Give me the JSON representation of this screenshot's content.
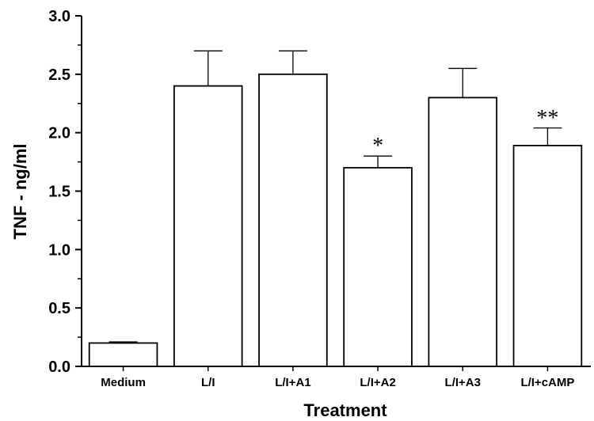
{
  "chart_data": {
    "type": "bar",
    "title": "",
    "xlabel": "Treatment",
    "ylabel": "TNF - ng/ml",
    "ylim": [
      0,
      3.0
    ],
    "yticks": [
      "0.0",
      "0.5",
      "1.0",
      "1.5",
      "2.0",
      "2.5",
      "3.0"
    ],
    "categories": [
      "Medium",
      "L/I",
      "L/I+A1",
      "L/I+A2",
      "L/I+A3",
      "L/I+cAMP"
    ],
    "values": [
      0.2,
      2.4,
      2.5,
      1.7,
      2.3,
      1.89
    ],
    "errors": [
      0.01,
      0.3,
      0.2,
      0.1,
      0.25,
      0.15
    ],
    "annotations": [
      "",
      "",
      "",
      "*",
      "",
      "**"
    ],
    "grid": false,
    "bar_color": "#ffffff",
    "edge_color": "#000000"
  }
}
